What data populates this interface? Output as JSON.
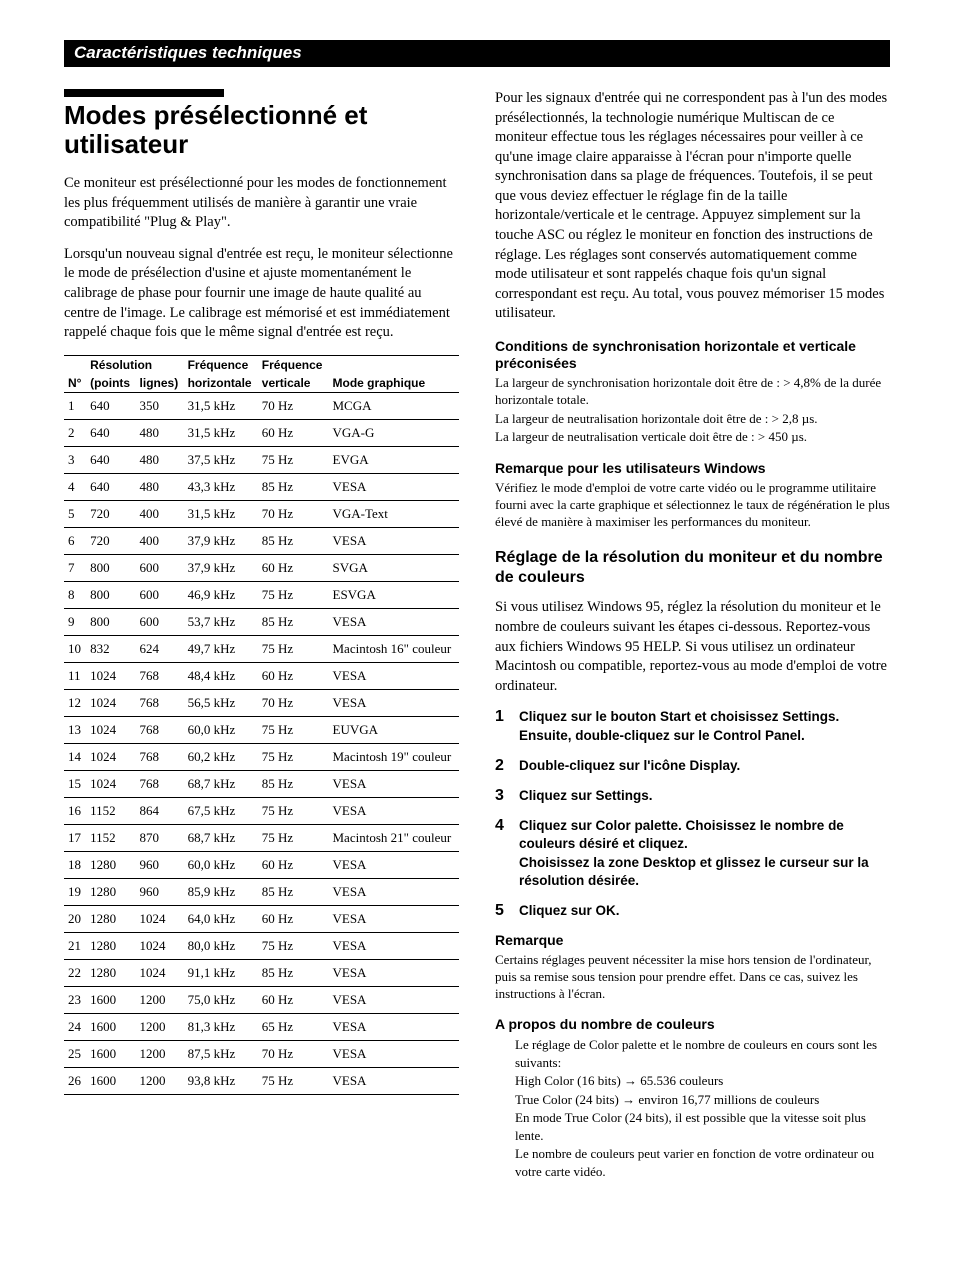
{
  "section_header": "Caractéristiques techniques",
  "main_title": "Modes présélectionné et utilisateur",
  "intro_p1": "Ce moniteur est présélectionné pour les modes de fonctionnement les plus fréquemment utilisés de manière à garantir une vraie compatibilité \"Plug & Play\".",
  "intro_p2": "Lorsqu'un nouveau signal d'entrée est reçu, le moniteur sélectionne le mode de présélection d'usine et ajuste momentanément le calibrage de phase pour fournir une image de haute qualité au centre de l'image. Le calibrage est mémorisé et est immédiatement rappelé chaque fois que le même signal d'entrée est reçu.",
  "table": {
    "header_row1": [
      "",
      "Résolution",
      "",
      "Fréquence",
      "Fréquence",
      ""
    ],
    "header_row2": [
      "N°",
      "(points",
      "lignes)",
      "horizontale",
      "verticale",
      "Mode graphique"
    ],
    "rows": [
      [
        "1",
        "640",
        "350",
        "31,5 kHz",
        "70 Hz",
        "MCGA"
      ],
      [
        "2",
        "640",
        "480",
        "31,5 kHz",
        "60 Hz",
        "VGA-G"
      ],
      [
        "3",
        "640",
        "480",
        "37,5 kHz",
        "75 Hz",
        "EVGA"
      ],
      [
        "4",
        "640",
        "480",
        "43,3 kHz",
        "85 Hz",
        "VESA"
      ],
      [
        "5",
        "720",
        "400",
        "31,5 kHz",
        "70 Hz",
        "VGA-Text"
      ],
      [
        "6",
        "720",
        "400",
        "37,9 kHz",
        "85 Hz",
        "VESA"
      ],
      [
        "7",
        "800",
        "600",
        "37,9 kHz",
        "60 Hz",
        "SVGA"
      ],
      [
        "8",
        "800",
        "600",
        "46,9 kHz",
        "75 Hz",
        "ESVGA"
      ],
      [
        "9",
        "800",
        "600",
        "53,7 kHz",
        "85 Hz",
        "VESA"
      ],
      [
        "10",
        "832",
        "624",
        "49,7 kHz",
        "75 Hz",
        "Macintosh 16\" couleur"
      ],
      [
        "11",
        "1024",
        "768",
        "48,4 kHz",
        "60 Hz",
        "VESA"
      ],
      [
        "12",
        "1024",
        "768",
        "56,5 kHz",
        "70 Hz",
        "VESA"
      ],
      [
        "13",
        "1024",
        "768",
        "60,0 kHz",
        "75 Hz",
        "EUVGA"
      ],
      [
        "14",
        "1024",
        "768",
        "60,2 kHz",
        "75 Hz",
        "Macintosh 19\" couleur"
      ],
      [
        "15",
        "1024",
        "768",
        "68,7 kHz",
        "85 Hz",
        "VESA"
      ],
      [
        "16",
        "1152",
        "864",
        "67,5 kHz",
        "75 Hz",
        "VESA"
      ],
      [
        "17",
        "1152",
        "870",
        "68,7 kHz",
        "75 Hz",
        "Macintosh 21\" couleur"
      ],
      [
        "18",
        "1280",
        "960",
        "60,0 kHz",
        "60 Hz",
        "VESA"
      ],
      [
        "19",
        "1280",
        "960",
        "85,9 kHz",
        "85 Hz",
        "VESA"
      ],
      [
        "20",
        "1280",
        "1024",
        "64,0 kHz",
        "60 Hz",
        "VESA"
      ],
      [
        "21",
        "1280",
        "1024",
        "80,0 kHz",
        "75 Hz",
        "VESA"
      ],
      [
        "22",
        "1280",
        "1024",
        "91,1 kHz",
        "85 Hz",
        "VESA"
      ],
      [
        "23",
        "1600",
        "1200",
        "75,0 kHz",
        "60 Hz",
        "VESA"
      ],
      [
        "24",
        "1600",
        "1200",
        "81,3 kHz",
        "65 Hz",
        "VESA"
      ],
      [
        "25",
        "1600",
        "1200",
        "87,5 kHz",
        "70 Hz",
        "VESA"
      ],
      [
        "26",
        "1600",
        "1200",
        "93,8 kHz",
        "75 Hz",
        "VESA"
      ]
    ]
  },
  "right_p1": "Pour les signaux d'entrée qui ne correspondent pas à l'un des modes présélectionnés, la technologie numérique Multiscan de ce moniteur effectue tous les réglages nécessaires pour veiller à ce qu'une image claire apparaisse à l'écran pour n'importe quelle synchronisation dans sa plage de fréquences. Toutefois, il se peut que vous deviez effectuer le réglage fin de la taille horizontale/verticale et le centrage. Appuyez simplement sur la touche ASC ou réglez le moniteur en fonction des instructions de réglage. Les réglages sont conservés automatiquement comme mode utilisateur et sont rappelés chaque fois qu'un signal correspondant est reçu. Au total, vous pouvez mémoriser 15 modes utilisateur.",
  "sync_heading": "Conditions de synchronisation horizontale et verticale préconisées",
  "sync_l1": "La largeur de synchronisation horizontale doit être de : > 4,8% de la durée horizontale totale.",
  "sync_l2": "La largeur de neutralisation horizontale doit être de : > 2,8 µs.",
  "sync_l3": "La largeur de neutralisation verticale doit être de : > 450 µs.",
  "win_heading": "Remarque pour les utilisateurs Windows",
  "win_body": "Vérifiez le mode d'emploi de votre carte vidéo ou le programme utilitaire fourni avec la carte graphique et sélectionnez le taux de régénération le plus élevé de manière à maximiser les performances du moniteur.",
  "res_heading": "Réglage de la résolution du moniteur et du nombre de couleurs",
  "res_body": "Si vous utilisez Windows 95, réglez la résolution du moniteur et le nombre de couleurs suivant les étapes ci-dessous. Reportez-vous aux fichiers Windows 95 HELP. Si vous utilisez un ordinateur Macintosh ou compatible, reportez-vous au mode d'emploi de votre ordinateur.",
  "steps": [
    "Cliquez sur le bouton Start et choisissez Settings. Ensuite, double-cliquez sur le Control Panel.",
    "Double-cliquez sur l'icône Display.",
    "Cliquez sur Settings.",
    "Cliquez sur Color palette. Choisissez le nombre de couleurs désiré et cliquez.\nChoisissez la zone Desktop et glissez le curseur sur la résolution désirée.",
    "Cliquez sur OK."
  ],
  "remarque_heading": "Remarque",
  "remarque_body": "Certains réglages peuvent nécessiter la mise hors tension de l'ordinateur, puis sa remise sous tension pour prendre effet. Dans ce cas, suivez les instructions à l'écran.",
  "colors_heading": "A propos du nombre de couleurs",
  "colors_intro": "Le réglage de Color palette et le nombre de couleurs en cours sont les suivants:",
  "colors_high": "High Color (16 bits)  →  65.536 couleurs",
  "colors_true": "True Color (24 bits)  →  environ 16,77 millions de couleurs",
  "colors_note1": "En mode True Color (24 bits), il est possible que la vitesse soit plus lente.",
  "colors_note2": "Le nombre de couleurs peut varier en fonction de votre ordinateur ou votre carte vidéo."
}
